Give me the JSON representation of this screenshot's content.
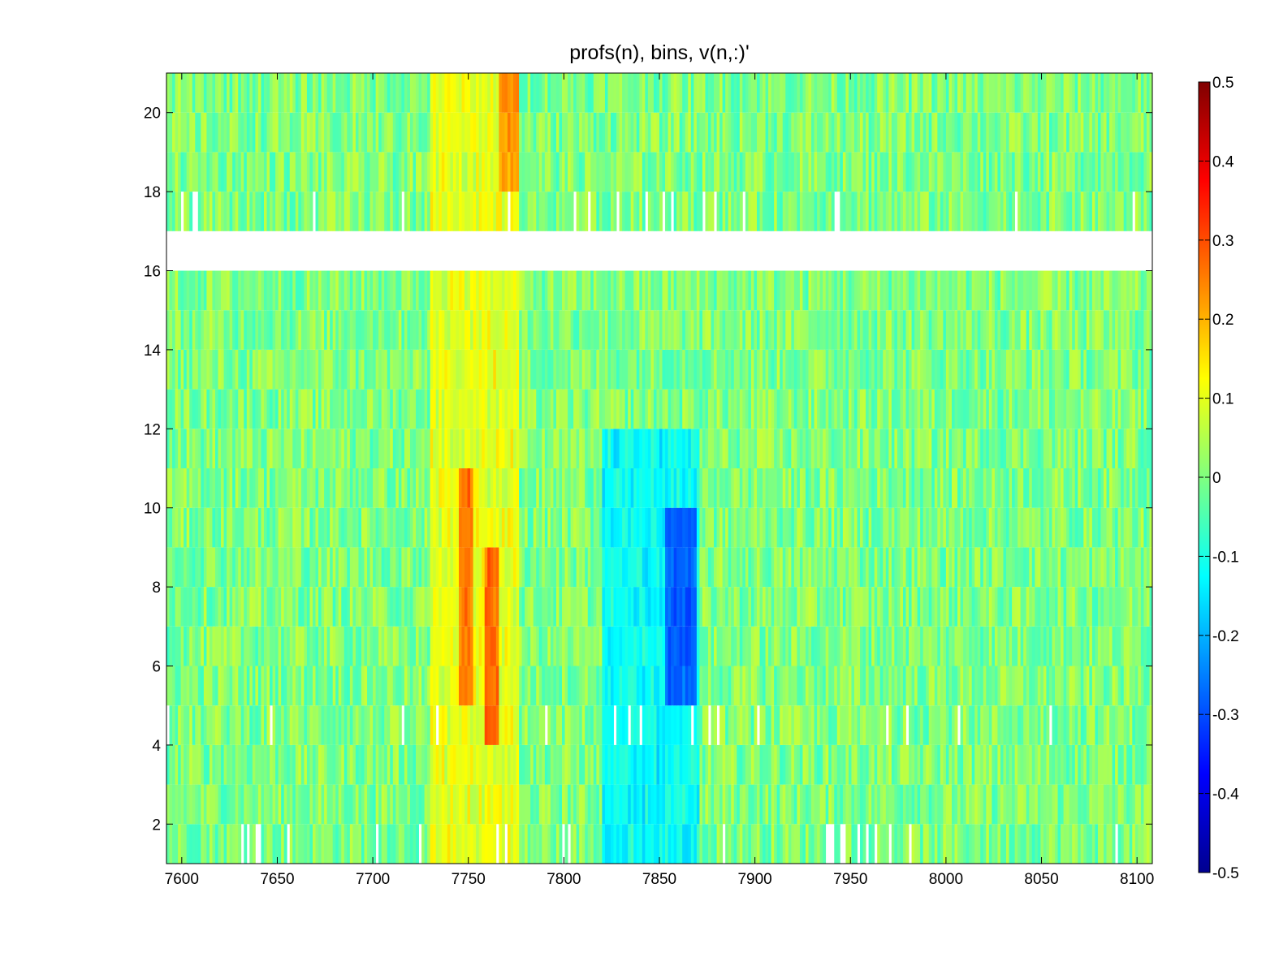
{
  "chart_data": {
    "type": "heatmap",
    "title": "profs(n), bins,        v(n,:)'",
    "xlabel": "",
    "ylabel": "",
    "xlim": [
      7592,
      8108
    ],
    "ylim": [
      1,
      21
    ],
    "x_ticks": [
      "7600",
      "7650",
      "7700",
      "7750",
      "7800",
      "7850",
      "7900",
      "7950",
      "8000",
      "8050",
      "8100"
    ],
    "y_ticks": [
      "2",
      "4",
      "6",
      "8",
      "10",
      "12",
      "14",
      "16",
      "18",
      "20"
    ],
    "x_tick_values": [
      7600,
      7650,
      7700,
      7750,
      7800,
      7850,
      7900,
      7950,
      8000,
      8050,
      8100
    ],
    "y_tick_values": [
      2,
      4,
      6,
      8,
      10,
      12,
      14,
      16,
      18,
      20
    ],
    "bins": [
      7592,
      8108
    ],
    "profiles": [
      1,
      2,
      3,
      4,
      5,
      6,
      7,
      8,
      9,
      10,
      11,
      12,
      13,
      14,
      15,
      16,
      17,
      18,
      19,
      20,
      21
    ],
    "missing_profiles": [
      17
    ],
    "colormap": "jet",
    "clim": [
      -0.5,
      0.5
    ],
    "colorbar_ticks": [
      "0.5",
      "0.4",
      "0.3",
      "0.2",
      "0.1",
      "0",
      "-0.1",
      "-0.2",
      "-0.3",
      "-0.4",
      "-0.5"
    ],
    "colorbar_tick_values": [
      0.5,
      0.4,
      0.3,
      0.2,
      0.1,
      0,
      -0.1,
      -0.2,
      -0.3,
      -0.4,
      -0.5
    ],
    "features": [
      {
        "x_range": [
          7730,
          7775
        ],
        "profile_range": [
          1,
          21
        ],
        "value": 0.1
      },
      {
        "x_range": [
          7745,
          7752
        ],
        "profile_range": [
          6,
          11
        ],
        "value": 0.2
      },
      {
        "x_range": [
          7758,
          7765
        ],
        "profile_range": [
          5,
          9
        ],
        "value": 0.22
      },
      {
        "x_range": [
          7765,
          7775
        ],
        "profile_range": [
          19,
          21
        ],
        "value": 0.18
      },
      {
        "x_range": [
          7820,
          7870
        ],
        "profile_range": [
          1,
          12
        ],
        "value": -0.12
      },
      {
        "x_range": [
          7852,
          7868
        ],
        "profile_range": [
          6,
          10
        ],
        "value": -0.22
      }
    ],
    "grid": false,
    "legend": "colorbar-right"
  }
}
